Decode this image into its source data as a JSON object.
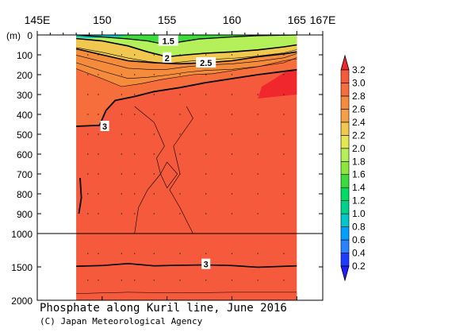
{
  "chart_data": {
    "type": "heatmap",
    "title": "Phosphate along Kuril line, June 2016",
    "credit": "(C) Japan Meteorological Agency",
    "x_tick_labels": [
      "145E",
      "150",
      "155",
      "160",
      "165",
      "167E"
    ],
    "x_ticks": [
      145,
      150,
      155,
      160,
      165,
      167
    ],
    "xlim": [
      145,
      167
    ],
    "ylabel": "(m)",
    "y_tick_labels": [
      "0",
      "100",
      "200",
      "300",
      "400",
      "500",
      "600",
      "700",
      "800",
      "900",
      "1000",
      "1500",
      "2000"
    ],
    "y_ticks_upper": [
      0,
      100,
      200,
      300,
      400,
      500,
      600,
      700,
      800,
      900,
      1000
    ],
    "y_ticks_lower": [
      1000,
      1500,
      2000
    ],
    "ylim": [
      0,
      2000
    ],
    "y_axis_break": 1000,
    "data_xlim": [
      148,
      165
    ],
    "colorbar": {
      "levels": [
        0.2,
        0.4,
        0.6,
        0.8,
        1.0,
        1.2,
        1.4,
        1.6,
        1.8,
        2.0,
        2.2,
        2.4,
        2.6,
        2.8,
        3.0,
        3.2
      ],
      "labels": [
        "0.2",
        "0.4",
        "0.6",
        "0.8",
        "1.0",
        "1.2",
        "1.4",
        "1.6",
        "1.8",
        "2.0",
        "2.2",
        "2.4",
        "2.6",
        "2.8",
        "3.0",
        "3.2"
      ],
      "colors": [
        "#1e3cff",
        "#2a82ff",
        "#00a0ff",
        "#00c8c8",
        "#00d28c",
        "#00dc64",
        "#3cdc3c",
        "#8ce63c",
        "#b4f05a",
        "#e6e650",
        "#f0c850",
        "#f5a046",
        "#f58c3c",
        "#f56e3c",
        "#f55a3c"
      ],
      "under_color": "#1e1eff",
      "over_color": "#f0282d"
    },
    "contour_labels": [
      {
        "text": "1.5",
        "x": 155.1,
        "depth": 30
      },
      {
        "text": "2",
        "x": 155.0,
        "depth": 115
      },
      {
        "text": "2.5",
        "x": 158.0,
        "depth": 140
      },
      {
        "text": "3",
        "x": 150.2,
        "depth": 460
      },
      {
        "text": "3",
        "x": 158.0,
        "depth": 1460
      }
    ],
    "contours": {
      "c1_5": [
        [
          148,
          0
        ],
        [
          150,
          10
        ],
        [
          152,
          20
        ],
        [
          153.5,
          30
        ],
        [
          155,
          50
        ],
        [
          156,
          35
        ],
        [
          157.5,
          20
        ],
        [
          160,
          10
        ],
        [
          162,
          3
        ],
        [
          165,
          0
        ]
      ],
      "c2": [
        [
          148,
          18
        ],
        [
          150,
          30
        ],
        [
          152,
          55
        ],
        [
          153.5,
          85
        ],
        [
          155,
          110
        ],
        [
          156.5,
          100
        ],
        [
          158,
          92
        ],
        [
          160,
          85
        ],
        [
          162,
          75
        ],
        [
          164,
          60
        ],
        [
          165,
          50
        ]
      ],
      "c2_5": [
        [
          148,
          70
        ],
        [
          150,
          100
        ],
        [
          152,
          130
        ],
        [
          154,
          140
        ],
        [
          156,
          145
        ],
        [
          158,
          140
        ],
        [
          160,
          130
        ],
        [
          162,
          110
        ],
        [
          164,
          95
        ],
        [
          165,
          85
        ]
      ],
      "c2_8": [
        [
          148,
          170
        ],
        [
          150,
          220
        ],
        [
          151.5,
          260
        ],
        [
          153,
          245
        ],
        [
          154.5,
          225
        ],
        [
          156,
          210
        ],
        [
          157,
          200
        ],
        [
          158.5,
          195
        ],
        [
          160,
          180
        ],
        [
          162,
          160
        ],
        [
          164,
          130
        ],
        [
          165,
          120
        ]
      ],
      "c3_main": [
        [
          148,
          460
        ],
        [
          149.8,
          455
        ],
        [
          150.3,
          380
        ],
        [
          151,
          330
        ],
        [
          152.5,
          310
        ],
        [
          154,
          285
        ],
        [
          156,
          265
        ],
        [
          158,
          240
        ],
        [
          160,
          220
        ],
        [
          162,
          200
        ],
        [
          165,
          175
        ]
      ],
      "c3_left": [
        [
          148.3,
          720
        ],
        [
          148.4,
          820
        ],
        [
          148.2,
          900
        ]
      ],
      "c3_deep": [
        [
          148,
          1490
        ],
        [
          150,
          1480
        ],
        [
          152,
          1450
        ],
        [
          154,
          1485
        ],
        [
          156,
          1475
        ],
        [
          158,
          1470
        ],
        [
          160,
          1480
        ],
        [
          162,
          1505
        ],
        [
          165,
          1485
        ]
      ],
      "c3_1_bottom": [
        [
          148,
          1900
        ],
        [
          152,
          1880
        ],
        [
          156,
          1890
        ],
        [
          160,
          1880
        ],
        [
          165,
          1880
        ]
      ]
    },
    "patches": [
      {
        "level": "over",
        "points": [
          [
            162,
            320
          ],
          [
            162.3,
            260
          ],
          [
            163.2,
            225
          ],
          [
            164,
            190
          ],
          [
            165,
            175
          ],
          [
            165,
            300
          ]
        ]
      }
    ],
    "blue_cap": {
      "points": [
        [
          148,
          0
        ],
        [
          152,
          0
        ],
        [
          151,
          12
        ],
        [
          149,
          16
        ],
        [
          148,
          12
        ]
      ]
    }
  }
}
